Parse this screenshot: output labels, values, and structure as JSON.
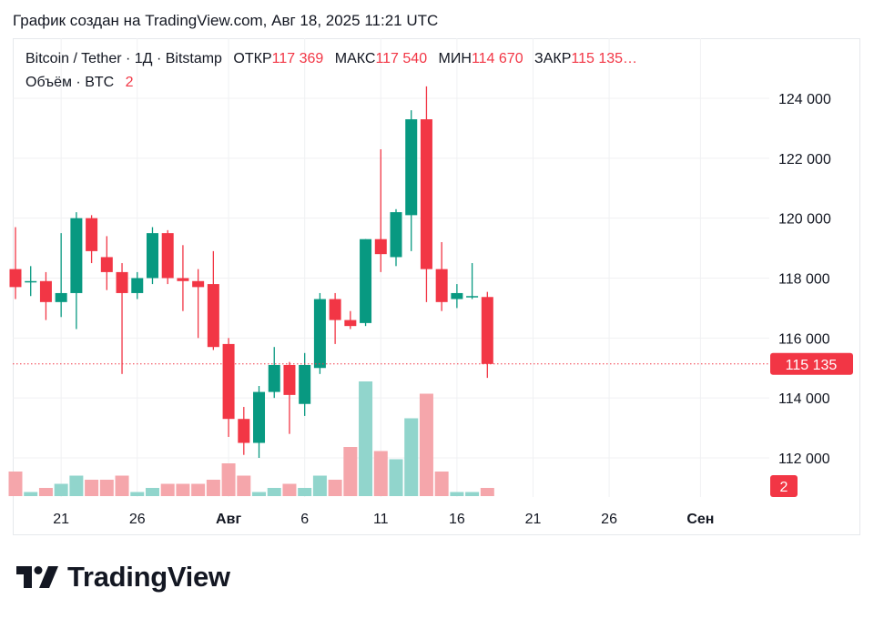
{
  "caption": "График создан на TradingView.com, Авг 18, 2025 11:21 UTC",
  "legend": {
    "symbol": "Bitcoin / Tether · 1Д · Bitstamp",
    "open_label": "ОТКР",
    "open_value": "117 369",
    "high_label": "МАКС",
    "high_value": "117 540",
    "low_label": "МИН",
    "low_value": "114 670",
    "close_label": "ЗАКР",
    "close_value": "115 135…",
    "volume_label": "Объём · BTC",
    "volume_value": "2"
  },
  "brand": {
    "name": "TradingView"
  },
  "colors": {
    "up": "#089981",
    "down": "#f23645",
    "up_volume": "#91d5cc",
    "down_volume": "#f5a6ab",
    "grid": "#f0f1f3"
  },
  "chart_data": {
    "type": "candlestick",
    "title": "",
    "price_axis": {
      "ylim": [
        110800,
        125500
      ],
      "ticks": [
        112000,
        114000,
        116000,
        118000,
        120000,
        122000,
        124000
      ],
      "tick_labels": [
        "112 000",
        "114 000",
        "116 000",
        "118 000",
        "120 000",
        "122 000",
        "124 000"
      ]
    },
    "time_axis": {
      "start": "2025-07-18",
      "end": "2025-09-02",
      "ticks": [
        {
          "date": "2025-07-21",
          "label": "21",
          "bold": false
        },
        {
          "date": "2025-07-26",
          "label": "26",
          "bold": false
        },
        {
          "date": "2025-08-01",
          "label": "Авг",
          "bold": true
        },
        {
          "date": "2025-08-06",
          "label": "6",
          "bold": false
        },
        {
          "date": "2025-08-11",
          "label": "11",
          "bold": false
        },
        {
          "date": "2025-08-16",
          "label": "16",
          "bold": false
        },
        {
          "date": "2025-08-21",
          "label": "21",
          "bold": false
        },
        {
          "date": "2025-08-26",
          "label": "26",
          "bold": false
        },
        {
          "date": "2025-09-01",
          "label": "Сен",
          "bold": true
        }
      ]
    },
    "last_price": {
      "value": 115135,
      "label": "115 135"
    },
    "last_volume_label": "2",
    "candles": [
      {
        "date": "2025-07-18",
        "open": 118300,
        "high": 119700,
        "low": 117300,
        "close": 117700
      },
      {
        "date": "2025-07-19",
        "open": 117900,
        "high": 118400,
        "low": 117400,
        "close": 117900
      },
      {
        "date": "2025-07-20",
        "open": 117900,
        "high": 118200,
        "low": 116600,
        "close": 117200
      },
      {
        "date": "2025-07-21",
        "open": 117200,
        "high": 119500,
        "low": 116700,
        "close": 117500
      },
      {
        "date": "2025-07-22",
        "open": 117500,
        "high": 120200,
        "low": 116300,
        "close": 120000
      },
      {
        "date": "2025-07-23",
        "open": 120000,
        "high": 120100,
        "low": 118500,
        "close": 118900
      },
      {
        "date": "2025-07-24",
        "open": 118700,
        "high": 119400,
        "low": 117600,
        "close": 118200
      },
      {
        "date": "2025-07-25",
        "open": 118200,
        "high": 118500,
        "low": 114800,
        "close": 117500
      },
      {
        "date": "2025-07-26",
        "open": 117500,
        "high": 118200,
        "low": 117300,
        "close": 118000
      },
      {
        "date": "2025-07-27",
        "open": 118000,
        "high": 119700,
        "low": 117800,
        "close": 119500
      },
      {
        "date": "2025-07-28",
        "open": 119500,
        "high": 119600,
        "low": 117800,
        "close": 118000
      },
      {
        "date": "2025-07-29",
        "open": 118000,
        "high": 119100,
        "low": 116900,
        "close": 117900
      },
      {
        "date": "2025-07-30",
        "open": 117900,
        "high": 118300,
        "low": 116000,
        "close": 117700
      },
      {
        "date": "2025-07-31",
        "open": 117800,
        "high": 118900,
        "low": 115600,
        "close": 115700
      },
      {
        "date": "2025-08-01",
        "open": 115800,
        "high": 116000,
        "low": 112700,
        "close": 113300
      },
      {
        "date": "2025-08-02",
        "open": 113300,
        "high": 113700,
        "low": 112100,
        "close": 112500
      },
      {
        "date": "2025-08-03",
        "open": 112500,
        "high": 114400,
        "low": 112000,
        "close": 114200
      },
      {
        "date": "2025-08-04",
        "open": 114200,
        "high": 115700,
        "low": 114000,
        "close": 115100
      },
      {
        "date": "2025-08-05",
        "open": 115100,
        "high": 115200,
        "low": 112800,
        "close": 114100
      },
      {
        "date": "2025-08-06",
        "open": 113800,
        "high": 115500,
        "low": 113400,
        "close": 115100
      },
      {
        "date": "2025-08-07",
        "open": 115000,
        "high": 117500,
        "low": 114800,
        "close": 117300
      },
      {
        "date": "2025-08-08",
        "open": 117300,
        "high": 117500,
        "low": 115800,
        "close": 116600
      },
      {
        "date": "2025-08-09",
        "open": 116600,
        "high": 116900,
        "low": 116300,
        "close": 116400
      },
      {
        "date": "2025-08-10",
        "open": 116500,
        "high": 119300,
        "low": 116400,
        "close": 119300
      },
      {
        "date": "2025-08-11",
        "open": 119300,
        "high": 122300,
        "low": 118200,
        "close": 118800
      },
      {
        "date": "2025-08-12",
        "open": 118700,
        "high": 120300,
        "low": 118400,
        "close": 120200
      },
      {
        "date": "2025-08-13",
        "open": 120100,
        "high": 123600,
        "low": 118900,
        "close": 123300
      },
      {
        "date": "2025-08-14",
        "open": 123300,
        "high": 124400,
        "low": 117200,
        "close": 118300
      },
      {
        "date": "2025-08-15",
        "open": 118300,
        "high": 119200,
        "low": 116900,
        "close": 117200
      },
      {
        "date": "2025-08-16",
        "open": 117300,
        "high": 117800,
        "low": 117000,
        "close": 117500
      },
      {
        "date": "2025-08-17",
        "open": 117400,
        "high": 118500,
        "low": 117300,
        "close": 117400
      },
      {
        "date": "2025-08-18",
        "open": 117369,
        "high": 117540,
        "low": 114670,
        "close": 115135
      }
    ],
    "volume": [
      6,
      1,
      2,
      3,
      5,
      4,
      4,
      5,
      1,
      2,
      3,
      3,
      3,
      4,
      8,
      5,
      1,
      2,
      3,
      2,
      5,
      4,
      12,
      28,
      11,
      9,
      19,
      25,
      6,
      1,
      1,
      2
    ]
  }
}
